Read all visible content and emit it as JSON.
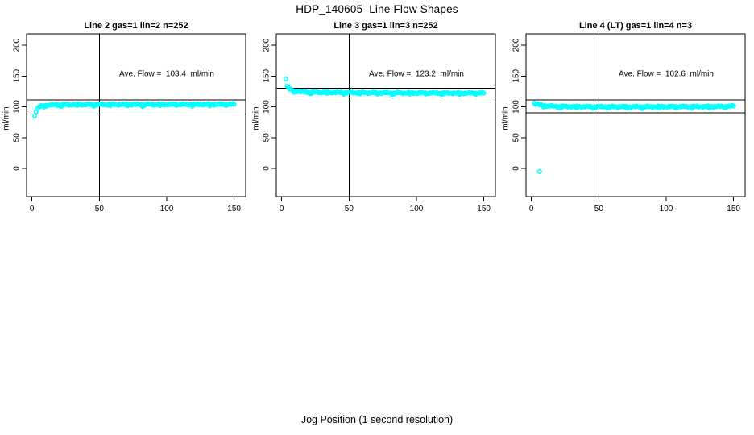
{
  "figure": {
    "title": "HDP_140605  Line Flow Shapes",
    "xlabel": "Jog Position (1 second resolution)",
    "background": "#FFFFFF",
    "axis_color": "#000000",
    "series_color": "#00FFFF"
  },
  "chart_data": [
    {
      "type": "scatter",
      "title": "Line 2 gas=1 lin=2 n=252",
      "annotation": "Ave. Flow =  103.4  ml/min",
      "ave_flow_ml_min": 103.4,
      "n": 252,
      "ylabel": "ml/min",
      "xlim": [
        0,
        150
      ],
      "ylim": [
        0,
        200
      ],
      "xticks": [
        0,
        50,
        100,
        150
      ],
      "yticks": [
        0,
        50,
        100,
        150,
        200
      ],
      "vline_x": 50,
      "hlines_y": [
        111,
        88
      ],
      "marker": "open-circle",
      "color": "#00FFFF",
      "band": [
        [
          2,
          85
        ],
        [
          3,
          93
        ],
        [
          4,
          97
        ],
        [
          5,
          99
        ],
        [
          6,
          100.3
        ],
        [
          8,
          101.5
        ],
        [
          10,
          102.2
        ],
        [
          14,
          102.9
        ],
        [
          20,
          103.3
        ],
        [
          30,
          103.5
        ],
        [
          60,
          103.7
        ],
        [
          100,
          103.8
        ],
        [
          150,
          103.9
        ]
      ],
      "outliers": []
    },
    {
      "type": "scatter",
      "title": "Line 3 gas=1 lin=3 n=252",
      "annotation": "Ave. Flow =  123.2  ml/min",
      "ave_flow_ml_min": 123.2,
      "n": 252,
      "ylabel": "ml/min",
      "xlim": [
        0,
        150
      ],
      "ylim": [
        0,
        200
      ],
      "xticks": [
        0,
        50,
        100,
        150
      ],
      "yticks": [
        0,
        50,
        100,
        150,
        200
      ],
      "vline_x": 50,
      "hlines_y": [
        130,
        116
      ],
      "marker": "open-circle",
      "color": "#00FFFF",
      "band": [
        [
          4,
          134
        ],
        [
          5,
          130.5
        ],
        [
          6,
          128.5
        ],
        [
          8,
          126.5
        ],
        [
          10,
          125.4
        ],
        [
          14,
          124.4
        ],
        [
          20,
          123.8
        ],
        [
          30,
          123.3
        ],
        [
          50,
          122.9
        ],
        [
          80,
          122.5
        ],
        [
          120,
          122.2
        ],
        [
          150,
          122.1
        ]
      ],
      "outliers": [
        [
          3,
          145
        ]
      ]
    },
    {
      "type": "scatter",
      "title": "Line 4 (LT) gas=1 lin=4 n=3",
      "annotation": "Ave. Flow =  102.6  ml/min",
      "ave_flow_ml_min": 102.6,
      "n": 3,
      "ylabel": "ml/min",
      "xlim": [
        0,
        150
      ],
      "ylim": [
        0,
        200
      ],
      "xticks": [
        0,
        50,
        100,
        150
      ],
      "yticks": [
        0,
        50,
        100,
        150,
        200
      ],
      "vline_x": 50,
      "hlines_y": [
        111,
        90
      ],
      "marker": "open-circle",
      "color": "#00FFFF",
      "band": [
        [
          2,
          106
        ],
        [
          3,
          105
        ],
        [
          5,
          103.8
        ],
        [
          8,
          102.3
        ],
        [
          12,
          101.3
        ],
        [
          18,
          100.7
        ],
        [
          30,
          100.3
        ],
        [
          60,
          100.1
        ],
        [
          100,
          100.2
        ],
        [
          135,
          100.4
        ],
        [
          146,
          100.6
        ],
        [
          150,
          101.3
        ]
      ],
      "outliers": [
        [
          6,
          -5
        ]
      ]
    }
  ]
}
